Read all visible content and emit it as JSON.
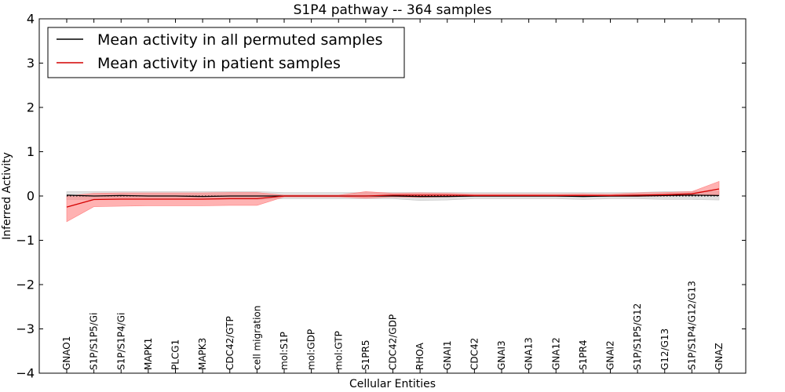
{
  "chart_data": {
    "type": "line",
    "title": "S1P4 pathway -- 364 samples",
    "xlabel": "Cellular Entities",
    "ylabel": "Inferred Activity",
    "ylim": [
      -4,
      4
    ],
    "yticks": [
      -4,
      -3,
      -2,
      -1,
      0,
      1,
      2,
      3,
      4
    ],
    "ytick_labels": [
      "−4",
      "−3",
      "−2",
      "−1",
      "0",
      "1",
      "2",
      "3",
      "4"
    ],
    "categories": [
      "GNAO1",
      "S1P/S1P5/Gi",
      "S1P/S1P4/Gi",
      "MAPK1",
      "PLCG1",
      "MAPK3",
      "CDC42/GTP",
      "cell migration",
      "mol:S1P",
      "mol:GDP",
      "mol:GTP",
      "S1PR5",
      "CDC42/GDP",
      "RHOA",
      "GNAI1",
      "CDC42",
      "GNAI3",
      "GNA13",
      "GNA12",
      "S1PR4",
      "GNAI2",
      "S1P/S1P5/G12",
      "G12/G13",
      "S1P/S1P4/G12/G13",
      "GNAZ"
    ],
    "legend_position": "top-left",
    "series": [
      {
        "name": "Mean activity in all permuted samples",
        "color": "#000000",
        "values": [
          0.02,
          0.0,
          0.01,
          0.0,
          0.0,
          -0.01,
          0.0,
          0.0,
          0.0,
          0.0,
          0.0,
          0.0,
          0.0,
          -0.01,
          -0.01,
          0.0,
          0.0,
          0.0,
          0.0,
          -0.01,
          0.0,
          0.0,
          0.01,
          0.02,
          0.01
        ],
        "band_low": [
          -0.08,
          -0.08,
          -0.08,
          -0.08,
          -0.08,
          -0.08,
          -0.08,
          -0.08,
          -0.06,
          -0.06,
          -0.06,
          -0.06,
          -0.06,
          -0.1,
          -0.09,
          -0.06,
          -0.06,
          -0.06,
          -0.06,
          -0.08,
          -0.06,
          -0.06,
          -0.08,
          -0.08,
          -0.09
        ],
        "band_high": [
          0.1,
          0.1,
          0.1,
          0.1,
          0.1,
          0.1,
          0.1,
          0.1,
          0.08,
          0.08,
          0.08,
          0.08,
          0.08,
          0.08,
          0.08,
          0.08,
          0.08,
          0.08,
          0.08,
          0.08,
          0.08,
          0.08,
          0.1,
          0.1,
          0.1
        ],
        "band_color": "#c8c8c8"
      },
      {
        "name": "Mean activity in patient samples",
        "color": "#d40000",
        "values": [
          -0.25,
          -0.08,
          -0.07,
          -0.07,
          -0.07,
          -0.07,
          -0.06,
          -0.06,
          0.0,
          0.0,
          0.0,
          0.0,
          0.02,
          0.02,
          0.02,
          0.01,
          0.01,
          0.01,
          0.01,
          0.01,
          0.01,
          0.02,
          0.03,
          0.05,
          0.16
        ],
        "band_low": [
          -0.58,
          -0.24,
          -0.23,
          -0.22,
          -0.22,
          -0.22,
          -0.21,
          -0.21,
          -0.02,
          -0.02,
          -0.02,
          -0.05,
          -0.02,
          -0.03,
          -0.02,
          -0.01,
          -0.01,
          -0.01,
          -0.01,
          -0.01,
          -0.01,
          -0.01,
          0.0,
          0.01,
          0.03
        ],
        "band_high": [
          0.0,
          0.06,
          0.07,
          0.07,
          0.07,
          0.07,
          0.08,
          0.08,
          0.02,
          0.02,
          0.02,
          0.1,
          0.06,
          0.07,
          0.06,
          0.04,
          0.04,
          0.04,
          0.04,
          0.05,
          0.04,
          0.07,
          0.08,
          0.1,
          0.33
        ],
        "band_color": "#ff7f7f"
      }
    ]
  }
}
